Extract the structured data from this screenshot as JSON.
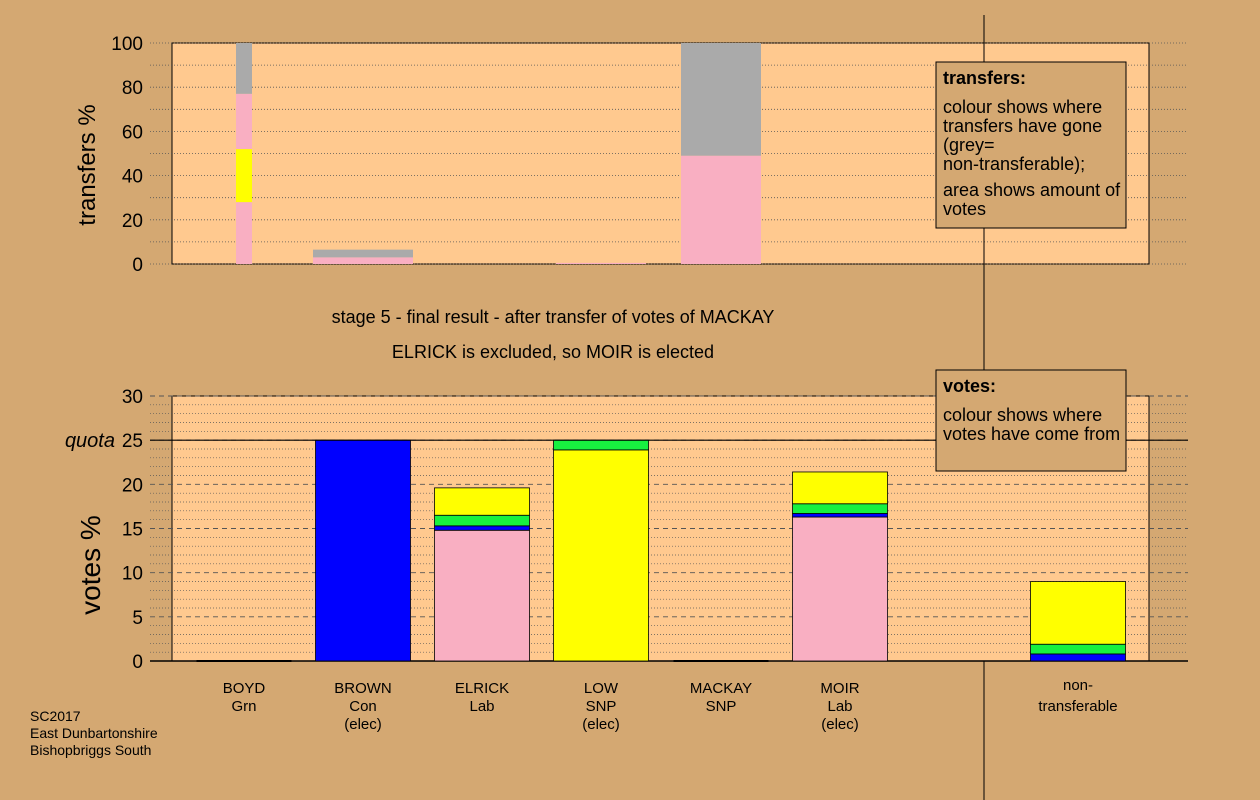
{
  "colors": {
    "background": "#D4A872",
    "plot_background": "#FFC98F",
    "BROWN": "#0000FF",
    "ELRICK": "#F9AFC2",
    "LOW": "#FFFF00",
    "MACKAY": "#18F040",
    "MOIR": "#F9AFC2",
    "non_transferable": "#AAAAAA"
  },
  "chart_data": [
    {
      "name": "transfers",
      "type": "bar",
      "stacked": true,
      "ylabel": "transfers %",
      "ylim": [
        0,
        100
      ],
      "yticks": [
        0,
        20,
        40,
        60,
        80,
        100
      ],
      "categories": [
        "BOYD Grn",
        "BROWN Con (elec)",
        "ELRICK Lab",
        "LOW SNP (elec)",
        "MACKAY SNP",
        "MOIR Lab (elec)"
      ],
      "bars": [
        {
          "category": "BOYD Grn",
          "segments": [
            {
              "source": "ELRICK",
              "value": 28
            },
            {
              "source": "LOW",
              "value": 24
            },
            {
              "source": "MOIR",
              "value": 25
            },
            {
              "source": "non-transferable",
              "value": 23
            }
          ]
        },
        {
          "category": "BROWN Con (elec)",
          "segments": [
            {
              "source": "MOIR",
              "value": 3
            },
            {
              "source": "non-transferable",
              "value": 3.5
            }
          ]
        },
        {
          "category": "ELRICK Lab",
          "segments": []
        },
        {
          "category": "LOW SNP (elec)",
          "segments": [
            {
              "source": "MOIR",
              "value": 0.5
            }
          ]
        },
        {
          "category": "MACKAY SNP",
          "segments": [
            {
              "source": "ELRICK",
              "value": 49
            },
            {
              "source": "non-transferable",
              "value": 51
            }
          ]
        },
        {
          "category": "MOIR Lab (elec)",
          "segments": []
        }
      ],
      "legend_box": {
        "title": "transfers:",
        "line1": "colour shows where transfers have gone (grey= non-transferable);",
        "line2": "area shows amount of votes"
      }
    },
    {
      "name": "votes",
      "type": "bar",
      "stacked": true,
      "ylabel": "votes %",
      "ylim": [
        0,
        30
      ],
      "yticks": [
        0,
        5,
        10,
        15,
        20,
        25,
        30
      ],
      "quota": 25,
      "quota_label": "quota",
      "categories": [
        "BOYD Grn",
        "BROWN Con (elec)",
        "ELRICK Lab",
        "LOW SNP (elec)",
        "MACKAY SNP",
        "MOIR Lab (elec)",
        "non-transferable"
      ],
      "bars": [
        {
          "category": "BOYD Grn",
          "segments": []
        },
        {
          "category": "BROWN Con (elec)",
          "segments": [
            {
              "source": "BROWN",
              "value": 25
            }
          ]
        },
        {
          "category": "ELRICK Lab",
          "segments": [
            {
              "source": "ELRICK",
              "value": 14.8
            },
            {
              "source": "BROWN",
              "value": 0.5
            },
            {
              "source": "MACKAY",
              "value": 1.2
            },
            {
              "source": "LOW",
              "value": 3.1
            }
          ]
        },
        {
          "category": "LOW SNP (elec)",
          "segments": [
            {
              "source": "LOW",
              "value": 23.9
            },
            {
              "source": "MACKAY",
              "value": 1.1
            }
          ]
        },
        {
          "category": "MACKAY SNP",
          "segments": []
        },
        {
          "category": "MOIR Lab (elec)",
          "segments": [
            {
              "source": "MOIR",
              "value": 16.3
            },
            {
              "source": "BROWN",
              "value": 0.4
            },
            {
              "source": "MACKAY",
              "value": 1.1
            },
            {
              "source": "LOW",
              "value": 3.6
            }
          ]
        },
        {
          "category": "non-transferable",
          "segments": [
            {
              "source": "BROWN",
              "value": 0.8
            },
            {
              "source": "MACKAY",
              "value": 1.1
            },
            {
              "source": "LOW",
              "value": 7.1
            }
          ]
        }
      ],
      "legend_box": {
        "title": "votes:",
        "line1": "colour shows where votes have come from"
      }
    }
  ],
  "stage_title": "stage 5 - final result - after transfer of votes of MACKAY",
  "stage_subtitle": "ELRICK is excluded, so MOIR is elected",
  "candidates": [
    {
      "name": "BOYD",
      "party": "Grn",
      "note": ""
    },
    {
      "name": "BROWN",
      "party": "Con",
      "note": "(elec)"
    },
    {
      "name": "ELRICK",
      "party": "Lab",
      "note": ""
    },
    {
      "name": "LOW",
      "party": "SNP",
      "note": "(elec)"
    },
    {
      "name": "MACKAY",
      "party": "SNP",
      "note": ""
    },
    {
      "name": "MOIR",
      "party": "Lab",
      "note": "(elec)"
    }
  ],
  "nontransferable_label": {
    "line1": "non-",
    "line2": "transferable"
  },
  "footer": {
    "line1": "SC2017",
    "line2": "East Dunbartonshire",
    "line3": "Bishopbriggs South"
  }
}
